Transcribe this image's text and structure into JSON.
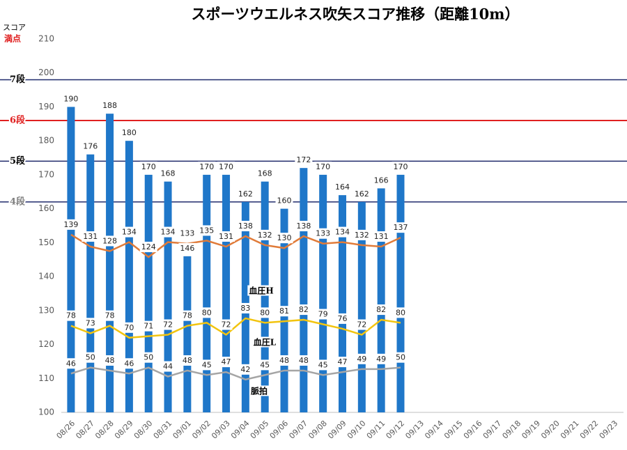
{
  "chart_data": {
    "type": "bar_line",
    "title": "スポーツウエルネス吹矢スコア推移（距離10m）",
    "y_axis_label": "スコア",
    "max_label": "満点",
    "categories": [
      "08/26",
      "08/27",
      "08/28",
      "08/29",
      "08/30",
      "08/31",
      "09/01",
      "09/02",
      "09/03",
      "09/04",
      "09/05",
      "09/06",
      "09/07",
      "09/08",
      "09/09",
      "09/10",
      "09/11",
      "09/12",
      "09/13",
      "09/14",
      "09/15",
      "09/16",
      "09/17",
      "09/18",
      "09/19",
      "09/20",
      "09/21",
      "09/22",
      "09/23"
    ],
    "ylim": [
      100,
      210
    ],
    "yticks": [
      100,
      110,
      120,
      130,
      140,
      150,
      160,
      170,
      180,
      190,
      200,
      210
    ],
    "y2lim": [
      20,
      270
    ],
    "series": [
      {
        "color": "#1f77c9",
        "values": [
          190,
          176,
          188,
          180,
          170,
          168,
          146,
          170,
          170,
          162,
          168,
          160,
          172,
          170,
          164,
          162,
          166,
          170,
          null,
          null,
          null,
          null,
          null,
          null,
          null,
          null,
          null,
          null,
          null
        ]
      },
      {
        "name": "血圧H",
        "axis": "y2",
        "color": "#e07b39",
        "values": [
          139,
          131,
          128,
          134,
          124,
          134,
          133,
          135,
          131,
          138,
          132,
          130,
          138,
          133,
          134,
          132,
          131,
          137,
          null,
          null,
          null,
          null,
          null,
          null,
          null,
          null,
          null,
          null,
          null
        ]
      },
      {
        "name": "血圧L",
        "axis": "y2",
        "color": "#f2c40f",
        "values": [
          78,
          73,
          78,
          70,
          71,
          72,
          78,
          80,
          72,
          83,
          80,
          81,
          82,
          79,
          76,
          72,
          82,
          80,
          null,
          null,
          null,
          null,
          null,
          null,
          null,
          null,
          null,
          null,
          null
        ]
      },
      {
        "name": "脈拍",
        "axis": "y2",
        "color": "#a5a5a5",
        "values": [
          46,
          50,
          48,
          46,
          50,
          44,
          48,
          45,
          47,
          42,
          45,
          48,
          48,
          45,
          47,
          49,
          49,
          50,
          null,
          null,
          null,
          null,
          null,
          null,
          null,
          null,
          null,
          null,
          null
        ]
      }
    ],
    "reference_lines": [
      {
        "label": "7段",
        "value": 198,
        "color": "#1f2a6b",
        "label_color": "#000000"
      },
      {
        "label": "6段",
        "value": 186,
        "color": "#e02020",
        "label_color": "#e02020"
      },
      {
        "label": "5段",
        "value": 174,
        "color": "#1f2a6b",
        "label_color": "#000000"
      },
      {
        "label": "4段",
        "value": 162,
        "color": "#1f2a6b",
        "label_color": "#808080"
      }
    ]
  }
}
